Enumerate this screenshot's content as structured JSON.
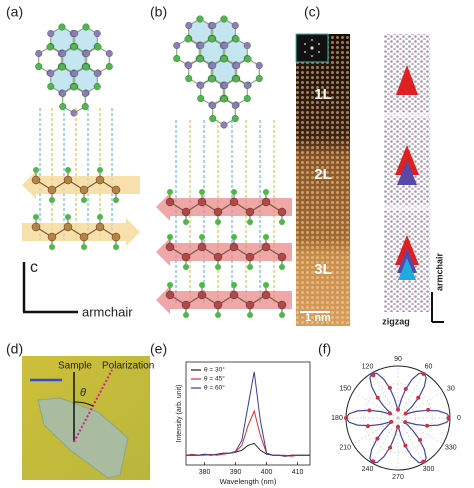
{
  "figure": {
    "panel_labels": [
      "(a)",
      "(b)",
      "(c)",
      "(d)",
      "(e)",
      "(f)"
    ],
    "axis_c": "c",
    "axis_armchair": "armchair",
    "layers": [
      "1L",
      "2L",
      "3L"
    ],
    "scale": "1 nm",
    "model_armchair": "armchair",
    "model_zigzag": "zigzag",
    "sample": "Sample",
    "polarization": "Polarization",
    "theta": "θ"
  },
  "chart_data": [
    {
      "type": "line",
      "xlabel": "Wavelength (nm)",
      "ylabel": "Intensity (arb. unit)",
      "x": [
        374,
        376,
        378,
        380,
        382,
        384,
        386,
        388,
        390,
        392,
        394,
        396,
        398,
        400,
        402,
        404,
        406,
        408,
        410,
        412,
        414
      ],
      "xlim": [
        374,
        414
      ],
      "xticks": [
        380,
        390,
        400,
        410
      ],
      "ylim": [
        0,
        1.05
      ],
      "legend": "upper left",
      "series": [
        {
          "name": "θ = 30°",
          "color": "#222222",
          "values": [
            0.1,
            0.1,
            0.1,
            0.11,
            0.1,
            0.11,
            0.12,
            0.12,
            0.13,
            0.15,
            0.2,
            0.22,
            0.15,
            0.11,
            0.1,
            0.1,
            0.09,
            0.1,
            0.1,
            0.1,
            0.1
          ]
        },
        {
          "name": "θ = 45°",
          "color": "#e03030",
          "values": [
            0.1,
            0.11,
            0.1,
            0.1,
            0.11,
            0.1,
            0.11,
            0.12,
            0.13,
            0.2,
            0.4,
            0.55,
            0.3,
            0.12,
            0.1,
            0.1,
            0.1,
            0.09,
            0.1,
            0.1,
            0.1
          ]
        },
        {
          "name": "θ = 60°",
          "color": "#3a3aa0",
          "values": [
            0.1,
            0.1,
            0.1,
            0.11,
            0.1,
            0.11,
            0.12,
            0.12,
            0.14,
            0.25,
            0.6,
            0.95,
            0.45,
            0.12,
            0.1,
            0.1,
            0.09,
            0.1,
            0.1,
            0.1,
            0.1
          ]
        }
      ]
    },
    {
      "type": "polar",
      "rlim": [
        0,
        1
      ],
      "thetaticks": [
        0,
        30,
        60,
        90,
        120,
        150,
        180,
        210,
        240,
        270,
        300,
        330
      ],
      "series": [
        {
          "style": "points",
          "color": "#d03040",
          "theta": [
            0,
            15,
            30,
            45,
            60,
            75,
            90,
            105,
            120,
            135,
            150,
            165,
            180,
            195,
            210,
            225,
            240,
            255,
            270,
            285,
            300,
            315,
            330,
            345
          ],
          "values": [
            0.97,
            0.6,
            0.17,
            0.55,
            0.98,
            0.58,
            0.16,
            0.6,
            0.95,
            0.55,
            0.18,
            0.57,
            1.0,
            0.6,
            0.15,
            0.56,
            0.96,
            0.59,
            0.17,
            0.55,
            0.97,
            0.6,
            0.16,
            0.58
          ]
        },
        {
          "style": "line",
          "color": "#4545a5",
          "theta": [
            0,
            5,
            10,
            15,
            20,
            25,
            30,
            35,
            40,
            45,
            50,
            55,
            60,
            65,
            70,
            75,
            80,
            85,
            90,
            95,
            100,
            105,
            110,
            115,
            120,
            125,
            130,
            135,
            140,
            145,
            150,
            155,
            160,
            165,
            170,
            175,
            180,
            185,
            190,
            195,
            200,
            205,
            210,
            215,
            220,
            225,
            230,
            235,
            240,
            245,
            250,
            255,
            260,
            265,
            270,
            275,
            280,
            285,
            290,
            295,
            300,
            305,
            310,
            315,
            320,
            325,
            330,
            335,
            340,
            345,
            350,
            355,
            360
          ],
          "values": [
            1,
            0.943,
            0.788,
            0.575,
            0.363,
            0.207,
            0.15,
            0.207,
            0.363,
            0.575,
            0.788,
            0.943,
            1,
            0.943,
            0.788,
            0.575,
            0.363,
            0.207,
            0.15,
            0.207,
            0.363,
            0.575,
            0.788,
            0.943,
            1,
            0.943,
            0.788,
            0.575,
            0.363,
            0.207,
            0.15,
            0.207,
            0.363,
            0.575,
            0.788,
            0.943,
            1,
            0.943,
            0.788,
            0.575,
            0.363,
            0.207,
            0.15,
            0.207,
            0.363,
            0.575,
            0.788,
            0.943,
            1,
            0.943,
            0.788,
            0.575,
            0.363,
            0.207,
            0.15,
            0.207,
            0.363,
            0.575,
            0.788,
            0.943,
            1,
            0.943,
            0.788,
            0.575,
            0.363,
            0.207,
            0.15,
            0.207,
            0.363,
            0.575,
            0.788,
            0.943,
            1
          ]
        }
      ]
    }
  ]
}
